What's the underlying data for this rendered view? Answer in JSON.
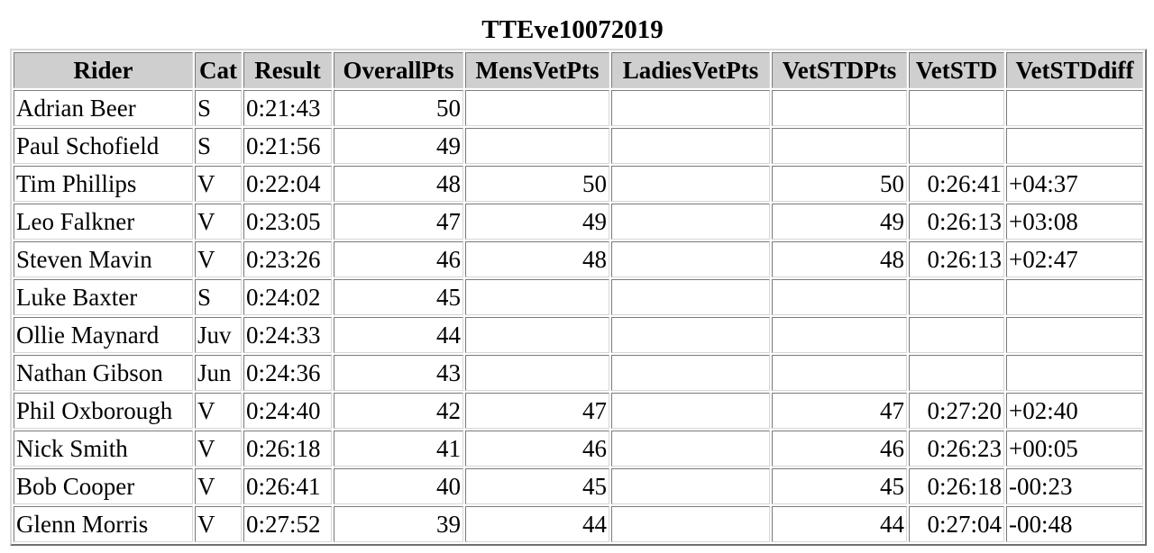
{
  "title": "TTEve10072019",
  "columns": [
    "Rider",
    "Cat",
    "Result",
    "OverallPts",
    "MensVetPts",
    "LadiesVetPts",
    "VetSTDPts",
    "VetSTD",
    "VetSTDdiff"
  ],
  "rows": [
    {
      "rider": "Adrian Beer",
      "cat": "S",
      "result": "0:21:43",
      "overall": "50",
      "mens": "",
      "ladies": "",
      "vstdpts": "",
      "vstd": "",
      "vdiff": ""
    },
    {
      "rider": "Paul Schofield",
      "cat": "S",
      "result": "0:21:56",
      "overall": "49",
      "mens": "",
      "ladies": "",
      "vstdpts": "",
      "vstd": "",
      "vdiff": ""
    },
    {
      "rider": "Tim Phillips",
      "cat": "V",
      "result": "0:22:04",
      "overall": "48",
      "mens": "50",
      "ladies": "",
      "vstdpts": "50",
      "vstd": "0:26:41",
      "vdiff": "+04:37"
    },
    {
      "rider": "Leo Falkner",
      "cat": "V",
      "result": "0:23:05",
      "overall": "47",
      "mens": "49",
      "ladies": "",
      "vstdpts": "49",
      "vstd": "0:26:13",
      "vdiff": "+03:08"
    },
    {
      "rider": "Steven Mavin",
      "cat": "V",
      "result": "0:23:26",
      "overall": "46",
      "mens": "48",
      "ladies": "",
      "vstdpts": "48",
      "vstd": "0:26:13",
      "vdiff": "+02:47"
    },
    {
      "rider": "Luke Baxter",
      "cat": "S",
      "result": "0:24:02",
      "overall": "45",
      "mens": "",
      "ladies": "",
      "vstdpts": "",
      "vstd": "",
      "vdiff": ""
    },
    {
      "rider": "Ollie Maynard",
      "cat": "Juv",
      "result": "0:24:33",
      "overall": "44",
      "mens": "",
      "ladies": "",
      "vstdpts": "",
      "vstd": "",
      "vdiff": ""
    },
    {
      "rider": "Nathan Gibson",
      "cat": "Jun",
      "result": "0:24:36",
      "overall": "43",
      "mens": "",
      "ladies": "",
      "vstdpts": "",
      "vstd": "",
      "vdiff": ""
    },
    {
      "rider": "Phil Oxborough",
      "cat": "V",
      "result": "0:24:40",
      "overall": "42",
      "mens": "47",
      "ladies": "",
      "vstdpts": "47",
      "vstd": "0:27:20",
      "vdiff": "+02:40"
    },
    {
      "rider": "Nick Smith",
      "cat": "V",
      "result": "0:26:18",
      "overall": "41",
      "mens": "46",
      "ladies": "",
      "vstdpts": "46",
      "vstd": "0:26:23",
      "vdiff": "+00:05"
    },
    {
      "rider": "Bob Cooper",
      "cat": "V",
      "result": "0:26:41",
      "overall": "40",
      "mens": "45",
      "ladies": "",
      "vstdpts": "45",
      "vstd": "0:26:18",
      "vdiff": "-00:23"
    },
    {
      "rider": "Glenn Morris",
      "cat": "V",
      "result": "0:27:52",
      "overall": "39",
      "mens": "44",
      "ladies": "",
      "vstdpts": "44",
      "vstd": "0:27:04",
      "vdiff": "-00:48"
    }
  ]
}
